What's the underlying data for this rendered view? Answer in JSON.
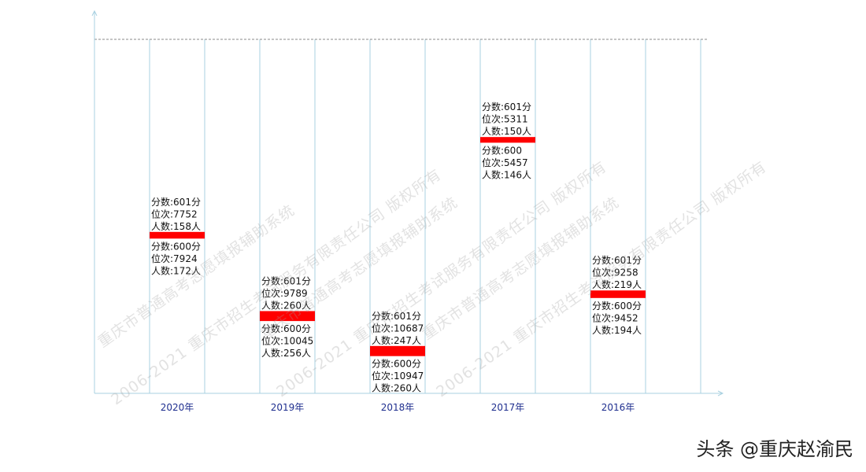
{
  "chart_data": {
    "type": "bar",
    "subtype": "floating-range",
    "categories": [
      "2020年",
      "2019年",
      "2018年",
      "2017年",
      "2016年"
    ],
    "top": [
      {
        "score": "分数:601分",
        "rank": "位次:7752",
        "count": "人数:158人",
        "rank_value": 7752
      },
      {
        "score": "分数:601分",
        "rank": "位次:9789",
        "count": "人数:260人",
        "rank_value": 9789
      },
      {
        "score": "分数:601分",
        "rank": "位次:10687",
        "count": "人数:247人",
        "rank_value": 10687
      },
      {
        "score": "分数:601分",
        "rank": "位次:5311",
        "count": "人数:150人",
        "rank_value": 5311
      },
      {
        "score": "分数:601分",
        "rank": "位次:9258",
        "count": "人数:219人",
        "rank_value": 9258
      }
    ],
    "bottom": [
      {
        "score": "分数:600分",
        "rank": "位次:7924",
        "count": "人数:172人",
        "rank_value": 7924
      },
      {
        "score": "分数:600分",
        "rank": "位次:10045",
        "count": "人数:256人",
        "rank_value": 10045
      },
      {
        "score": "分数:600分",
        "rank": "位次:10947",
        "count": "人数:260人",
        "rank_value": 10947
      },
      {
        "score": "分数:600",
        "rank": "位次:5457",
        "count": "人数:146人",
        "rank_value": 5457
      },
      {
        "score": "分数:600分",
        "rank": "位次:9452",
        "count": "人数:194人",
        "rank_value": 9452
      }
    ],
    "y_reversed": true,
    "ylim": [
      3000,
      11500
    ],
    "bar_color": "#ff0000",
    "grid_color": "#a8d0e0",
    "axis_color": "#a8d0e0",
    "tick_label_color": "#1f2f8f"
  },
  "watermark": {
    "lines": [
      "重庆市普通高考志愿填报辅助系统",
      "2006-2021 重庆市招生考试服务有限责任公司 版权所有"
    ]
  },
  "credit": "头条 @重庆赵渝民"
}
